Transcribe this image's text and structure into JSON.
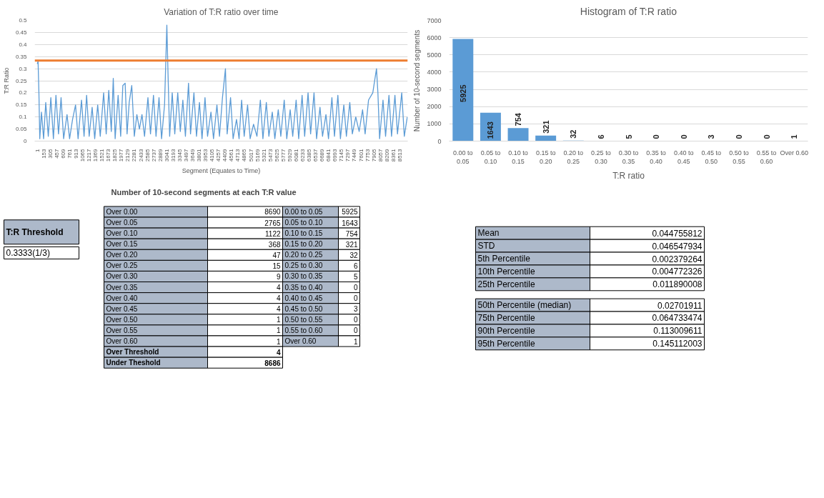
{
  "chart_data": [
    {
      "type": "line",
      "title": "Variation of T:R ratio over time",
      "xlabel": "Segment (Equates to Time)",
      "ylabel": "T:R Ratio",
      "grid": "y",
      "x": [
        1,
        20,
        40,
        60,
        100,
        150,
        200,
        260,
        320,
        380,
        440,
        500,
        560,
        620,
        700,
        760,
        830,
        900,
        960,
        1040,
        1100,
        1160,
        1220,
        1290,
        1350,
        1420,
        1480,
        1560,
        1620,
        1680,
        1740,
        1786,
        1830,
        1900,
        1960,
        2010,
        2065,
        2110,
        2160,
        2220,
        2280,
        2340,
        2400,
        2460,
        2520,
        2600,
        2660,
        2730,
        2790,
        2860,
        2920,
        2990,
        3044,
        3070,
        3110,
        3170,
        3230,
        3300,
        3360,
        3420,
        3480,
        3553,
        3600,
        3680,
        3740,
        3810,
        3870,
        3940,
        4000,
        4080,
        4140,
        4220,
        4280,
        4350,
        4420,
        4460,
        4540,
        4600,
        4680,
        4740,
        4800,
        4860,
        4940,
        5000,
        5080,
        5160,
        5240,
        5300,
        5380,
        5440,
        5520,
        5580,
        5660,
        5720,
        5800,
        5860,
        5940,
        6000,
        6080,
        6140,
        6220,
        6280,
        6360,
        6420,
        6500,
        6560,
        6640,
        6700,
        6780,
        6840,
        6920,
        6980,
        7060,
        7120,
        7200,
        7260,
        7340,
        7400,
        7480,
        7560,
        7640,
        7700,
        7780,
        7880,
        7967,
        8000,
        8040,
        8120,
        8180,
        8260,
        8320,
        8400,
        8460,
        8560,
        8620,
        8690
      ],
      "series": [
        {
          "color": "#5b9bd5",
          "values": [
            0.32,
            0.33,
            0.2,
            0.01,
            0.12,
            0.01,
            0.16,
            0.02,
            0.18,
            0.01,
            0.19,
            0.03,
            0.18,
            0.01,
            0.11,
            0.01,
            0.09,
            0.15,
            0.01,
            0.17,
            0.02,
            0.19,
            0.02,
            0.14,
            0.01,
            0.15,
            0.02,
            0.2,
            0.03,
            0.21,
            0.04,
            0.26,
            0.01,
            0.19,
            0.02,
            0.23,
            0.24,
            0.03,
            0.16,
            0.23,
            0.02,
            0.11,
            0.05,
            0.11,
            0.02,
            0.18,
            0.03,
            0.19,
            0.02,
            0.18,
            0.01,
            0.15,
            0.48,
            0.29,
            0.02,
            0.2,
            0.03,
            0.2,
            0.04,
            0.17,
            0.02,
            0.24,
            0.03,
            0.2,
            0.02,
            0.16,
            0.01,
            0.18,
            0.02,
            0.12,
            0.01,
            0.15,
            0.02,
            0.18,
            0.3,
            0.03,
            0.18,
            0.01,
            0.09,
            0.01,
            0.17,
            0.02,
            0.15,
            0.01,
            0.07,
            0.02,
            0.17,
            0.01,
            0.16,
            0.02,
            0.12,
            0.01,
            0.13,
            0.02,
            0.17,
            0.01,
            0.13,
            0.02,
            0.17,
            0.01,
            0.19,
            0.02,
            0.2,
            0.03,
            0.2,
            0.01,
            0.14,
            0.02,
            0.11,
            0.01,
            0.18,
            0.02,
            0.19,
            0.01,
            0.15,
            0.02,
            0.16,
            0.03,
            0.1,
            0.04,
            0.13,
            0.03,
            0.17,
            0.2,
            0.3,
            0.2,
            0.01,
            0.17,
            0.02,
            0.19,
            0.02,
            0.19,
            0.03,
            0.2,
            0.02,
            0.1
          ]
        }
      ],
      "xlim": [
        -60,
        8700
      ],
      "xticks": [
        1,
        153,
        305,
        457,
        609,
        761,
        913,
        1065,
        1217,
        1369,
        1521,
        1673,
        1825,
        1977,
        2129,
        2281,
        2433,
        2585,
        2737,
        2889,
        3041,
        3193,
        3345,
        3497,
        3649,
        3801,
        3953,
        4105,
        4257,
        4409,
        4561,
        4713,
        4865,
        5017,
        5169,
        5321,
        5473,
        5625,
        5777,
        5929,
        6081,
        6233,
        6385,
        6537,
        6689,
        6841,
        6993,
        7145,
        7297,
        7449,
        7601,
        7753,
        7905,
        8057,
        8209,
        8361,
        8513
      ],
      "ylim": [
        0,
        0.5
      ],
      "yticks": [
        0,
        0.05,
        0.1,
        0.15,
        0.2,
        0.25,
        0.3,
        0.35,
        0.4,
        0.45,
        0.5
      ],
      "ref_lines": [
        {
          "axis": "y",
          "value": 0.3333,
          "color": "#ed7d31"
        }
      ]
    },
    {
      "type": "bar",
      "title": "Histogram of T:R ratio",
      "xlabel": "T:R ratio",
      "ylabel": "Number of 10-second segments",
      "grid": "y",
      "data_labels": true,
      "categories": [
        "0.00 to 0.05",
        "0.05 to 0.10",
        "0.10 to 0.15",
        "0.15 to 0.20",
        "0.20 to 0.25",
        "0.25 to 0.30",
        "0.30 to 0.35",
        "0.35 to 0.40",
        "0.40 to 0.45",
        "0.45 to 0.50",
        "0.50 to 0.55",
        "0.55 to 0.60",
        "Over 0.60"
      ],
      "series": [
        {
          "color": "#5b9bd5",
          "values": [
            5925,
            1643,
            754,
            321,
            32,
            6,
            5,
            0,
            0,
            3,
            0,
            0,
            1
          ]
        }
      ],
      "ylim": [
        0,
        7000
      ],
      "yticks": [
        0,
        1000,
        2000,
        3000,
        4000,
        5000,
        6000,
        7000
      ]
    },
    {
      "type": "other",
      "annotations": [
        "T:R Threshold",
        "0.3333(1/3)"
      ]
    },
    {
      "type": "other",
      "title": "Number of 10-second segments at each T:R value",
      "annotations": [
        "Over 0.00",
        "8690",
        "0.00 to 0.05",
        "5925",
        "Over 0.05",
        "2765",
        "0.05 to 0.10",
        "1643",
        "Over 0.10",
        "1122",
        "0.10 to 0.15",
        "754",
        "Over 0.15",
        "368",
        "0.15 to 0.20",
        "321",
        "Over 0.20",
        "47",
        "0.20 to 0.25",
        "32",
        "Over 0.25",
        "15",
        "0.25 to 0.30",
        "6",
        "Over 0.30",
        "9",
        "0.30 to 0.35",
        "5",
        "Over 0.35",
        "4",
        "0.35 to 0.40",
        "0",
        "Over 0.40",
        "4",
        "0.40 to 0.45",
        "0",
        "Over 0.45",
        "4",
        "0.45 to 0.50",
        "3",
        "Over 0.50",
        "1",
        "0.50 to 0.55",
        "0",
        "Over 0.55",
        "1",
        "0.55 to 0.60",
        "0",
        "Over 0.60",
        "1",
        "Over 0.60",
        "1",
        "Over Threshold",
        "4",
        "Under Theshold",
        "8686"
      ]
    },
    {
      "type": "other",
      "annotations": [
        "Mean",
        "0.044755812",
        "STD",
        "0.046547934",
        "5th Percentile",
        "0.002379264",
        "10th Percentile",
        "0.004772326",
        "25th Percentile",
        "0.011890008",
        "50th Percentile (median)",
        "0.02701911",
        "75th Percentile",
        "0.064733474",
        "90th Percentile",
        "0.113009611",
        "95th Percentile",
        "0.145112003"
      ]
    }
  ]
}
